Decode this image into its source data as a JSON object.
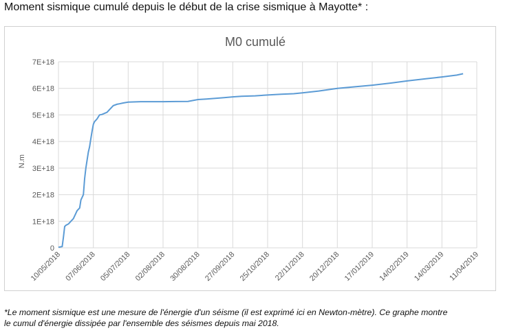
{
  "heading": "Moment sismique cumulé depuis le début de la crise sismique à Mayotte* :",
  "footnote_line1": "*Le moment sismique est une mesure de l'énergie d'un séisme (il est exprimé ici en Newton-mètre). Ce graphe montre",
  "footnote_line2": "le cumul d'énergie dissipée par l'ensemble des séismes depuis mai 2018.",
  "chart_data": {
    "type": "line",
    "title": "M0 cumulé",
    "xlabel": "",
    "ylabel": "N.m",
    "grid": true,
    "legend": "none",
    "line_color": "#5b9bd5",
    "ylim": [
      0,
      7e+18
    ],
    "yticks": [
      0,
      1e+18,
      2e+18,
      3e+18,
      4e+18,
      5e+18,
      6e+18,
      7e+18
    ],
    "ytick_labels": [
      "0",
      "1E+18",
      "2E+18",
      "3E+18",
      "4E+18",
      "5E+18",
      "6E+18",
      "7E+18"
    ],
    "xlim": [
      "2018-05-10",
      "2019-04-11"
    ],
    "xtick_labels": [
      "10/05/2018",
      "07/06/2018",
      "05/07/2018",
      "02/08/2018",
      "30/08/2018",
      "27/09/2018",
      "25/10/2018",
      "22/11/2018",
      "20/12/2018",
      "17/01/2019",
      "14/02/2019",
      "14/03/2019",
      "11/04/2019"
    ],
    "xtick_dates": [
      "2018-05-10",
      "2018-06-07",
      "2018-07-05",
      "2018-08-02",
      "2018-08-30",
      "2018-09-27",
      "2018-10-25",
      "2018-11-22",
      "2018-12-20",
      "2019-01-17",
      "2019-02-14",
      "2019-03-14",
      "2019-04-11"
    ],
    "series": [
      {
        "x": [
          "2018-05-10",
          "2018-05-13",
          "2018-05-14",
          "2018-05-15",
          "2018-05-16",
          "2018-05-18",
          "2018-05-20",
          "2018-05-22",
          "2018-05-24",
          "2018-05-25",
          "2018-05-27",
          "2018-05-28",
          "2018-05-30",
          "2018-05-31",
          "2018-06-01",
          "2018-06-02",
          "2018-06-03",
          "2018-06-04",
          "2018-06-05",
          "2018-06-06",
          "2018-06-07",
          "2018-06-08",
          "2018-06-09",
          "2018-06-10",
          "2018-06-12",
          "2018-06-14",
          "2018-06-18",
          "2018-06-19",
          "2018-06-22",
          "2018-06-23",
          "2018-06-26",
          "2018-06-28",
          "2018-07-01",
          "2018-07-05",
          "2018-07-15",
          "2018-08-02",
          "2018-08-22",
          "2018-08-30",
          "2018-09-06",
          "2018-09-20",
          "2018-09-27",
          "2018-10-04",
          "2018-10-15",
          "2018-10-25",
          "2018-11-05",
          "2018-11-15",
          "2018-11-22",
          "2018-12-05",
          "2018-12-20",
          "2019-01-01",
          "2019-01-17",
          "2019-02-01",
          "2019-02-14",
          "2019-03-01",
          "2019-03-14",
          "2019-03-26",
          "2019-03-31"
        ],
        "y": [
          2e+16,
          5e+16,
          4e+17,
          8e+17,
          8.5e+17,
          9e+17,
          1e+18,
          1.1e+18,
          1.3e+18,
          1.4e+18,
          1.5e+18,
          1.8e+18,
          2e+18,
          2.6e+18,
          3e+18,
          3.3e+18,
          3.6e+18,
          3.8e+18,
          4.1e+18,
          4.4e+18,
          4.65e+18,
          4.75e+18,
          4.8e+18,
          4.85e+18,
          5e+18,
          5.02e+18,
          5.1e+18,
          5.15e+18,
          5.3e+18,
          5.35e+18,
          5.4e+18,
          5.42e+18,
          5.45e+18,
          5.48e+18,
          5.5e+18,
          5.5e+18,
          5.51e+18,
          5.58e+18,
          5.6e+18,
          5.65e+18,
          5.68e+18,
          5.7e+18,
          5.72e+18,
          5.75e+18,
          5.78e+18,
          5.8e+18,
          5.83e+18,
          5.9e+18,
          6e+18,
          6.05e+18,
          6.12e+18,
          6.2e+18,
          6.28e+18,
          6.36e+18,
          6.43e+18,
          6.5e+18,
          6.55e+18
        ]
      }
    ]
  }
}
